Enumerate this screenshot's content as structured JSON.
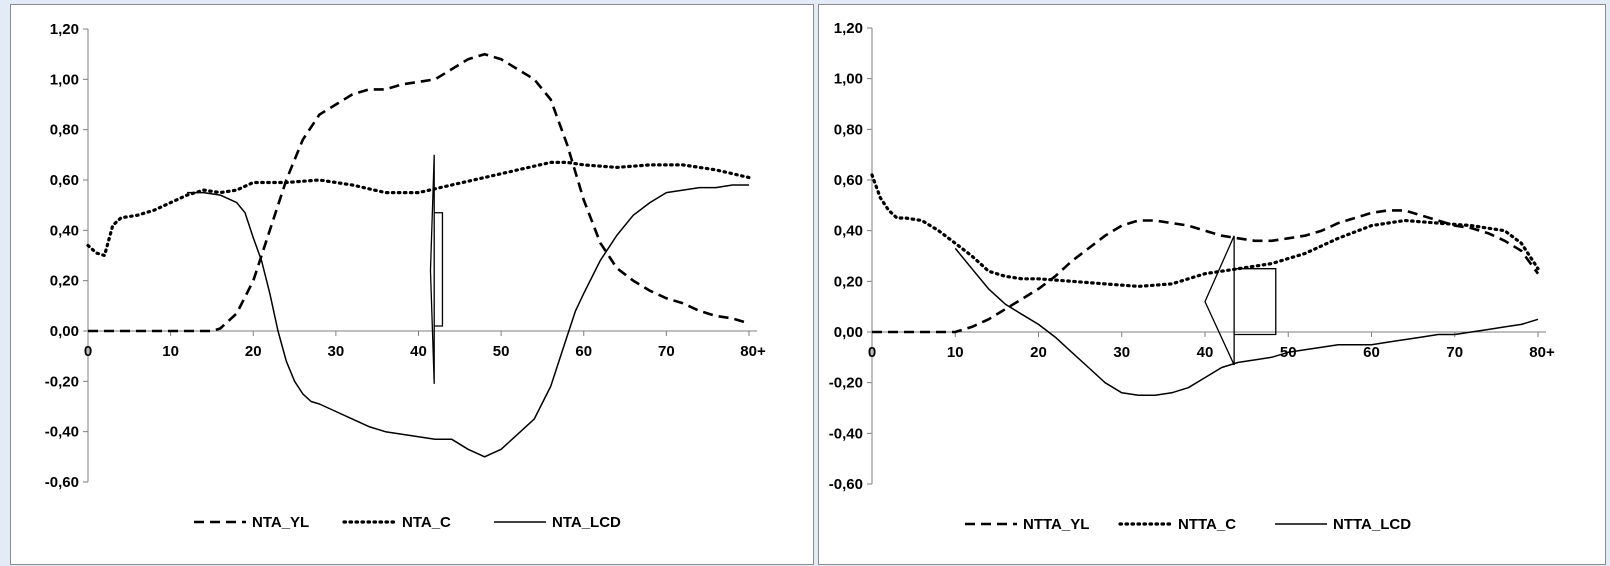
{
  "chart_data": [
    {
      "type": "line",
      "title": "",
      "xlabel": "",
      "ylabel": "",
      "xlim": [
        0,
        80
      ],
      "ylim": [
        -0.6,
        1.2
      ],
      "y_ticks": [
        "-0,60",
        "-0,40",
        "-0,20",
        "0,00",
        "0,20",
        "0,40",
        "0,60",
        "0,80",
        "1,00",
        "1,20"
      ],
      "x_ticks": [
        "0",
        "10",
        "20",
        "30",
        "40",
        "50",
        "60",
        "70",
        "80+"
      ],
      "grid": false,
      "legend_position": "bottom",
      "annotation": "arrow",
      "arrow": {
        "x_center": 42.5,
        "y_head": 0.7,
        "y_tail": -0.21,
        "y_stem_top": 0.47,
        "y_stem_bottom": 0.02
      },
      "series": [
        {
          "name": "NTA_YL",
          "style": "dashed",
          "x": [
            0,
            5,
            10,
            15,
            16,
            18,
            20,
            22,
            24,
            26,
            28,
            30,
            32,
            34,
            36,
            38,
            40,
            42,
            44,
            46,
            48,
            50,
            52,
            54,
            56,
            58,
            60,
            62,
            64,
            66,
            68,
            70,
            72,
            74,
            76,
            78,
            80
          ],
          "y": [
            0.0,
            0.0,
            0.0,
            0.0,
            0.01,
            0.07,
            0.2,
            0.4,
            0.6,
            0.76,
            0.86,
            0.9,
            0.94,
            0.96,
            0.96,
            0.98,
            0.99,
            1.0,
            1.04,
            1.08,
            1.1,
            1.08,
            1.04,
            1.0,
            0.92,
            0.74,
            0.52,
            0.35,
            0.25,
            0.2,
            0.16,
            0.13,
            0.11,
            0.08,
            0.06,
            0.05,
            0.03
          ]
        },
        {
          "name": "NTA_C",
          "style": "dotted",
          "x": [
            0,
            1,
            2,
            3,
            4,
            6,
            8,
            10,
            12,
            14,
            16,
            18,
            20,
            24,
            28,
            32,
            36,
            40,
            44,
            48,
            52,
            56,
            58,
            60,
            64,
            68,
            72,
            76,
            80
          ],
          "y": [
            0.34,
            0.31,
            0.3,
            0.42,
            0.45,
            0.46,
            0.48,
            0.51,
            0.54,
            0.56,
            0.55,
            0.56,
            0.59,
            0.59,
            0.6,
            0.58,
            0.55,
            0.55,
            0.58,
            0.61,
            0.64,
            0.67,
            0.67,
            0.66,
            0.65,
            0.66,
            0.66,
            0.64,
            0.61
          ]
        },
        {
          "name": "NTA_LCD",
          "style": "solid",
          "x": [
            12,
            14,
            16,
            18,
            19,
            20,
            21,
            22,
            23,
            24,
            25,
            26,
            27,
            28,
            30,
            32,
            34,
            36,
            38,
            40,
            42,
            44,
            46,
            48,
            50,
            52,
            54,
            56,
            58,
            59,
            60,
            62,
            64,
            66,
            68,
            70,
            72,
            74,
            76,
            78,
            80
          ],
          "y": [
            0.55,
            0.55,
            0.54,
            0.51,
            0.47,
            0.37,
            0.28,
            0.15,
            0.0,
            -0.12,
            -0.2,
            -0.25,
            -0.28,
            -0.29,
            -0.32,
            -0.35,
            -0.38,
            -0.4,
            -0.41,
            -0.42,
            -0.43,
            -0.43,
            -0.47,
            -0.5,
            -0.47,
            -0.41,
            -0.35,
            -0.22,
            -0.02,
            0.08,
            0.15,
            0.28,
            0.38,
            0.46,
            0.51,
            0.55,
            0.56,
            0.57,
            0.57,
            0.58,
            0.58
          ]
        }
      ]
    },
    {
      "type": "line",
      "title": "",
      "xlabel": "",
      "ylabel": "",
      "xlim": [
        0,
        80
      ],
      "ylim": [
        -0.6,
        1.2
      ],
      "y_ticks": [
        "-0,60",
        "-0,40",
        "-0,20",
        "0,00",
        "0,20",
        "0,40",
        "0,60",
        "0,80",
        "1,00",
        "1,20"
      ],
      "x_ticks": [
        "0",
        "10",
        "20",
        "30",
        "40",
        "50",
        "60",
        "70",
        "80+"
      ],
      "grid": false,
      "legend_position": "bottom",
      "annotation": "arrow",
      "arrow": {
        "x_head": 43.5,
        "x_tail": 40.0,
        "x_stem_left": 44.0,
        "x_stem_right": 48.5,
        "y_center": 0.12,
        "y_top": 0.38,
        "y_bottom": -0.13,
        "y_stem_top": 0.25,
        "y_stem_bottom": -0.01
      },
      "series": [
        {
          "name": "NTTA_YL",
          "style": "dashed",
          "x": [
            0,
            5,
            10,
            12,
            14,
            16,
            18,
            20,
            22,
            24,
            26,
            28,
            30,
            32,
            34,
            36,
            38,
            40,
            42,
            44,
            46,
            48,
            50,
            52,
            54,
            56,
            58,
            60,
            62,
            64,
            66,
            68,
            70,
            72,
            74,
            76,
            78,
            80
          ],
          "y": [
            0.0,
            0.0,
            0.0,
            0.02,
            0.05,
            0.09,
            0.13,
            0.17,
            0.22,
            0.28,
            0.33,
            0.38,
            0.42,
            0.44,
            0.44,
            0.43,
            0.42,
            0.4,
            0.38,
            0.37,
            0.36,
            0.36,
            0.37,
            0.38,
            0.4,
            0.43,
            0.45,
            0.47,
            0.48,
            0.48,
            0.46,
            0.44,
            0.42,
            0.41,
            0.39,
            0.36,
            0.32,
            0.23
          ]
        },
        {
          "name": "NTTA_C",
          "style": "dotted",
          "x": [
            0,
            1,
            2,
            3,
            4,
            6,
            8,
            10,
            12,
            14,
            16,
            18,
            20,
            24,
            28,
            32,
            36,
            40,
            44,
            48,
            52,
            56,
            60,
            64,
            68,
            72,
            76,
            78,
            80
          ],
          "y": [
            0.62,
            0.53,
            0.48,
            0.45,
            0.45,
            0.44,
            0.4,
            0.35,
            0.3,
            0.24,
            0.22,
            0.21,
            0.21,
            0.2,
            0.19,
            0.18,
            0.19,
            0.23,
            0.25,
            0.27,
            0.31,
            0.37,
            0.42,
            0.44,
            0.43,
            0.42,
            0.4,
            0.35,
            0.25
          ]
        },
        {
          "name": "NTTA_LCD",
          "style": "solid",
          "x": [
            10,
            12,
            14,
            16,
            18,
            20,
            22,
            24,
            26,
            28,
            30,
            32,
            34,
            36,
            38,
            40,
            42,
            44,
            46,
            48,
            50,
            52,
            54,
            56,
            58,
            60,
            62,
            64,
            66,
            68,
            70,
            72,
            74,
            76,
            78,
            80
          ],
          "y": [
            0.33,
            0.25,
            0.17,
            0.11,
            0.07,
            0.03,
            -0.02,
            -0.08,
            -0.14,
            -0.2,
            -0.24,
            -0.25,
            -0.25,
            -0.24,
            -0.22,
            -0.18,
            -0.14,
            -0.12,
            -0.11,
            -0.1,
            -0.08,
            -0.07,
            -0.06,
            -0.05,
            -0.05,
            -0.05,
            -0.04,
            -0.03,
            -0.02,
            -0.01,
            -0.01,
            0.0,
            0.01,
            0.02,
            0.03,
            0.05
          ]
        }
      ]
    }
  ]
}
